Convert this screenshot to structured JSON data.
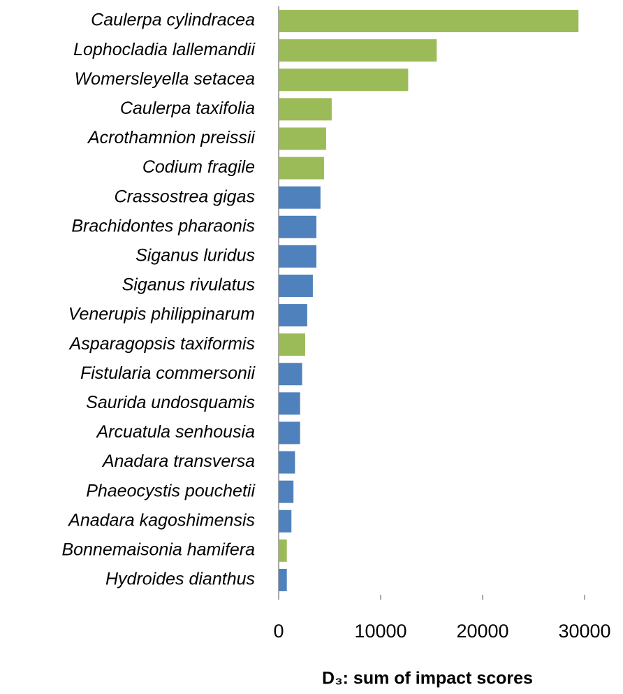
{
  "chart_data": {
    "type": "barh",
    "xlabel": "D₃: sum of impact scores",
    "categories": [
      "Caulerpa cylindracea",
      "Lophocladia lallemandii",
      "Womersleyella setacea",
      "Caulerpa taxifolia",
      "Acrothamnion preissii",
      "Codium fragile",
      "Crassostrea gigas",
      "Brachidontes pharaonis",
      "Siganus luridus",
      "Siganus rivulatus",
      "Venerupis philippinarum",
      "Asparagopsis taxiformis",
      "Fistularia commersonii",
      "Saurida undosquamis",
      "Arcuatula senhousia",
      "Anadara transversa",
      "Phaeocystis pouchetii",
      "Anadara kagoshimensis",
      "Bonnemaisonia hamifera",
      "Hydroides dianthus"
    ],
    "values": [
      29400,
      15500,
      12700,
      5200,
      4650,
      4450,
      4100,
      3700,
      3700,
      3350,
      2800,
      2600,
      2300,
      2100,
      2100,
      1600,
      1450,
      1250,
      800,
      800
    ],
    "colors": [
      "#9bbb59",
      "#9bbb59",
      "#9bbb59",
      "#9bbb59",
      "#9bbb59",
      "#9bbb59",
      "#4f81bd",
      "#4f81bd",
      "#4f81bd",
      "#4f81bd",
      "#4f81bd",
      "#9bbb59",
      "#4f81bd",
      "#4f81bd",
      "#4f81bd",
      "#4f81bd",
      "#4f81bd",
      "#4f81bd",
      "#9bbb59",
      "#4f81bd"
    ],
    "xlim": [
      0,
      30000
    ],
    "xticks": [
      0,
      10000,
      20000,
      30000
    ],
    "grid": false
  }
}
